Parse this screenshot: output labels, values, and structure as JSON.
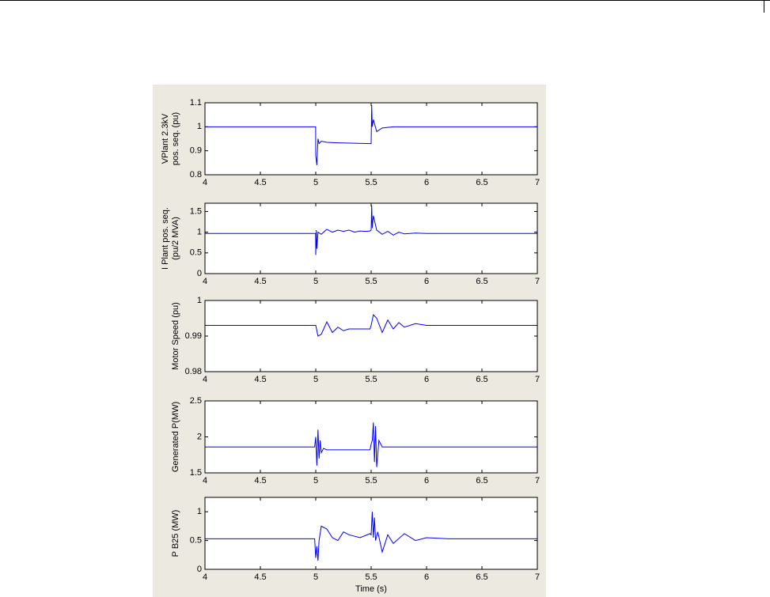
{
  "chart_data": [
    {
      "type": "line",
      "ylabel": [
        "VPlant 2.3kV",
        "pos. seq. (pu)"
      ],
      "xlim": [
        4,
        7
      ],
      "xticks": [
        4,
        4.5,
        5,
        5.5,
        6,
        6.5,
        7
      ],
      "ylim": [
        0.8,
        1.1
      ],
      "yticks": [
        0.8,
        0.9,
        1,
        1.1
      ],
      "series": [
        {
          "color": "#0000ff",
          "x": [
            4,
            4.999,
            5.0,
            5.01,
            5.02,
            5.03,
            5.05,
            5.1,
            5.2,
            5.49,
            5.5,
            5.505,
            5.51,
            5.52,
            5.55,
            5.6,
            5.7,
            5.75,
            7
          ],
          "values": [
            1,
            1,
            0.88,
            0.84,
            0.95,
            0.93,
            0.94,
            0.935,
            0.933,
            0.93,
            0.93,
            1.09,
            1.0,
            1.03,
            0.98,
            0.995,
            1.0,
            1.0,
            1.0
          ]
        }
      ]
    },
    {
      "type": "line",
      "ylabel": [
        "I Plant pos. seq.",
        "(pu/2 MVA)"
      ],
      "xlim": [
        4,
        7
      ],
      "xticks": [
        4,
        4.5,
        5,
        5.5,
        6,
        6.5,
        7
      ],
      "ylim": [
        0,
        1.7
      ],
      "yticks": [
        0,
        0.5,
        1,
        1.5
      ],
      "series": [
        {
          "color": "#0000ff",
          "x": [
            4,
            4.999,
            5.0,
            5.005,
            5.01,
            5.02,
            5.05,
            5.1,
            5.15,
            5.2,
            5.25,
            5.3,
            5.35,
            5.4,
            5.45,
            5.49,
            5.5,
            5.505,
            5.51,
            5.52,
            5.55,
            5.6,
            5.65,
            5.7,
            5.75,
            5.8,
            5.9,
            6,
            7
          ],
          "values": [
            0.97,
            0.97,
            0.45,
            1.05,
            0.6,
            1.0,
            0.95,
            1.07,
            1.0,
            1.05,
            1.02,
            1.05,
            1.0,
            1.03,
            1.02,
            1.03,
            1.05,
            1.65,
            1.1,
            1.4,
            1.05,
            0.95,
            1.02,
            0.93,
            1.0,
            0.96,
            0.98,
            0.97,
            0.97
          ]
        }
      ]
    },
    {
      "type": "line",
      "ylabel": [
        "Motor Speed (pu)"
      ],
      "xlim": [
        4,
        7
      ],
      "xticks": [
        4,
        4.5,
        5,
        5.5,
        6,
        6.5,
        7
      ],
      "ylim": [
        0.98,
        1
      ],
      "yticks": [
        0.98,
        0.99,
        1
      ],
      "series": [
        {
          "color": "#0000ff",
          "x": [
            4,
            4.99,
            5,
            5.02,
            5.05,
            5.1,
            5.15,
            5.2,
            5.25,
            5.3,
            5.4,
            5.49,
            5.5,
            5.52,
            5.55,
            5.6,
            5.65,
            5.7,
            5.75,
            5.8,
            5.9,
            6,
            6.2,
            7
          ],
          "values": [
            0.993,
            0.993,
            0.993,
            0.99,
            0.9905,
            0.994,
            0.991,
            0.9925,
            0.9915,
            0.992,
            0.992,
            0.992,
            0.993,
            0.996,
            0.995,
            0.991,
            0.9945,
            0.992,
            0.9938,
            0.9925,
            0.9935,
            0.993,
            0.993,
            0.993
          ]
        }
      ]
    },
    {
      "type": "line",
      "ylabel": [
        "Generated P(MW)"
      ],
      "xlim": [
        4,
        7
      ],
      "xticks": [
        4,
        4.5,
        5,
        5.5,
        6,
        6.5,
        7
      ],
      "ylim": [
        1.5,
        2.5
      ],
      "yticks": [
        1.5,
        2,
        2.5
      ],
      "series": [
        {
          "color": "#0000ff",
          "x": [
            4,
            4.99,
            5,
            5.01,
            5.02,
            5.03,
            5.04,
            5.05,
            5.07,
            5.1,
            5.49,
            5.5,
            5.51,
            5.52,
            5.53,
            5.54,
            5.55,
            5.57,
            5.6,
            7
          ],
          "values": [
            1.86,
            1.86,
            2.0,
            1.6,
            2.1,
            1.7,
            1.95,
            1.78,
            1.84,
            1.82,
            1.82,
            1.9,
            1.95,
            2.2,
            1.65,
            2.15,
            1.58,
            1.95,
            1.86,
            1.86
          ]
        }
      ]
    },
    {
      "type": "line",
      "ylabel": [
        "P B25 (MW)"
      ],
      "xlabel": "Time (s)",
      "xlim": [
        4,
        7
      ],
      "xticks": [
        4,
        4.5,
        5,
        5.5,
        6,
        6.5,
        7
      ],
      "ylim": [
        0,
        1.25
      ],
      "yticks": [
        0,
        0.5,
        1
      ],
      "series": [
        {
          "color": "#0000ff",
          "x": [
            4,
            4.99,
            5,
            5.01,
            5.02,
            5.03,
            5.05,
            5.1,
            5.15,
            5.2,
            5.25,
            5.3,
            5.4,
            5.49,
            5.5,
            5.51,
            5.52,
            5.53,
            5.54,
            5.56,
            5.6,
            5.65,
            5.7,
            5.8,
            5.9,
            6,
            6.2,
            7
          ],
          "values": [
            0.53,
            0.53,
            0.2,
            0.4,
            0.15,
            0.5,
            0.75,
            0.7,
            0.55,
            0.5,
            0.65,
            0.6,
            0.55,
            0.62,
            0.6,
            1.0,
            0.55,
            0.9,
            0.5,
            0.65,
            0.3,
            0.6,
            0.45,
            0.62,
            0.5,
            0.55,
            0.53,
            0.53
          ]
        }
      ]
    }
  ]
}
